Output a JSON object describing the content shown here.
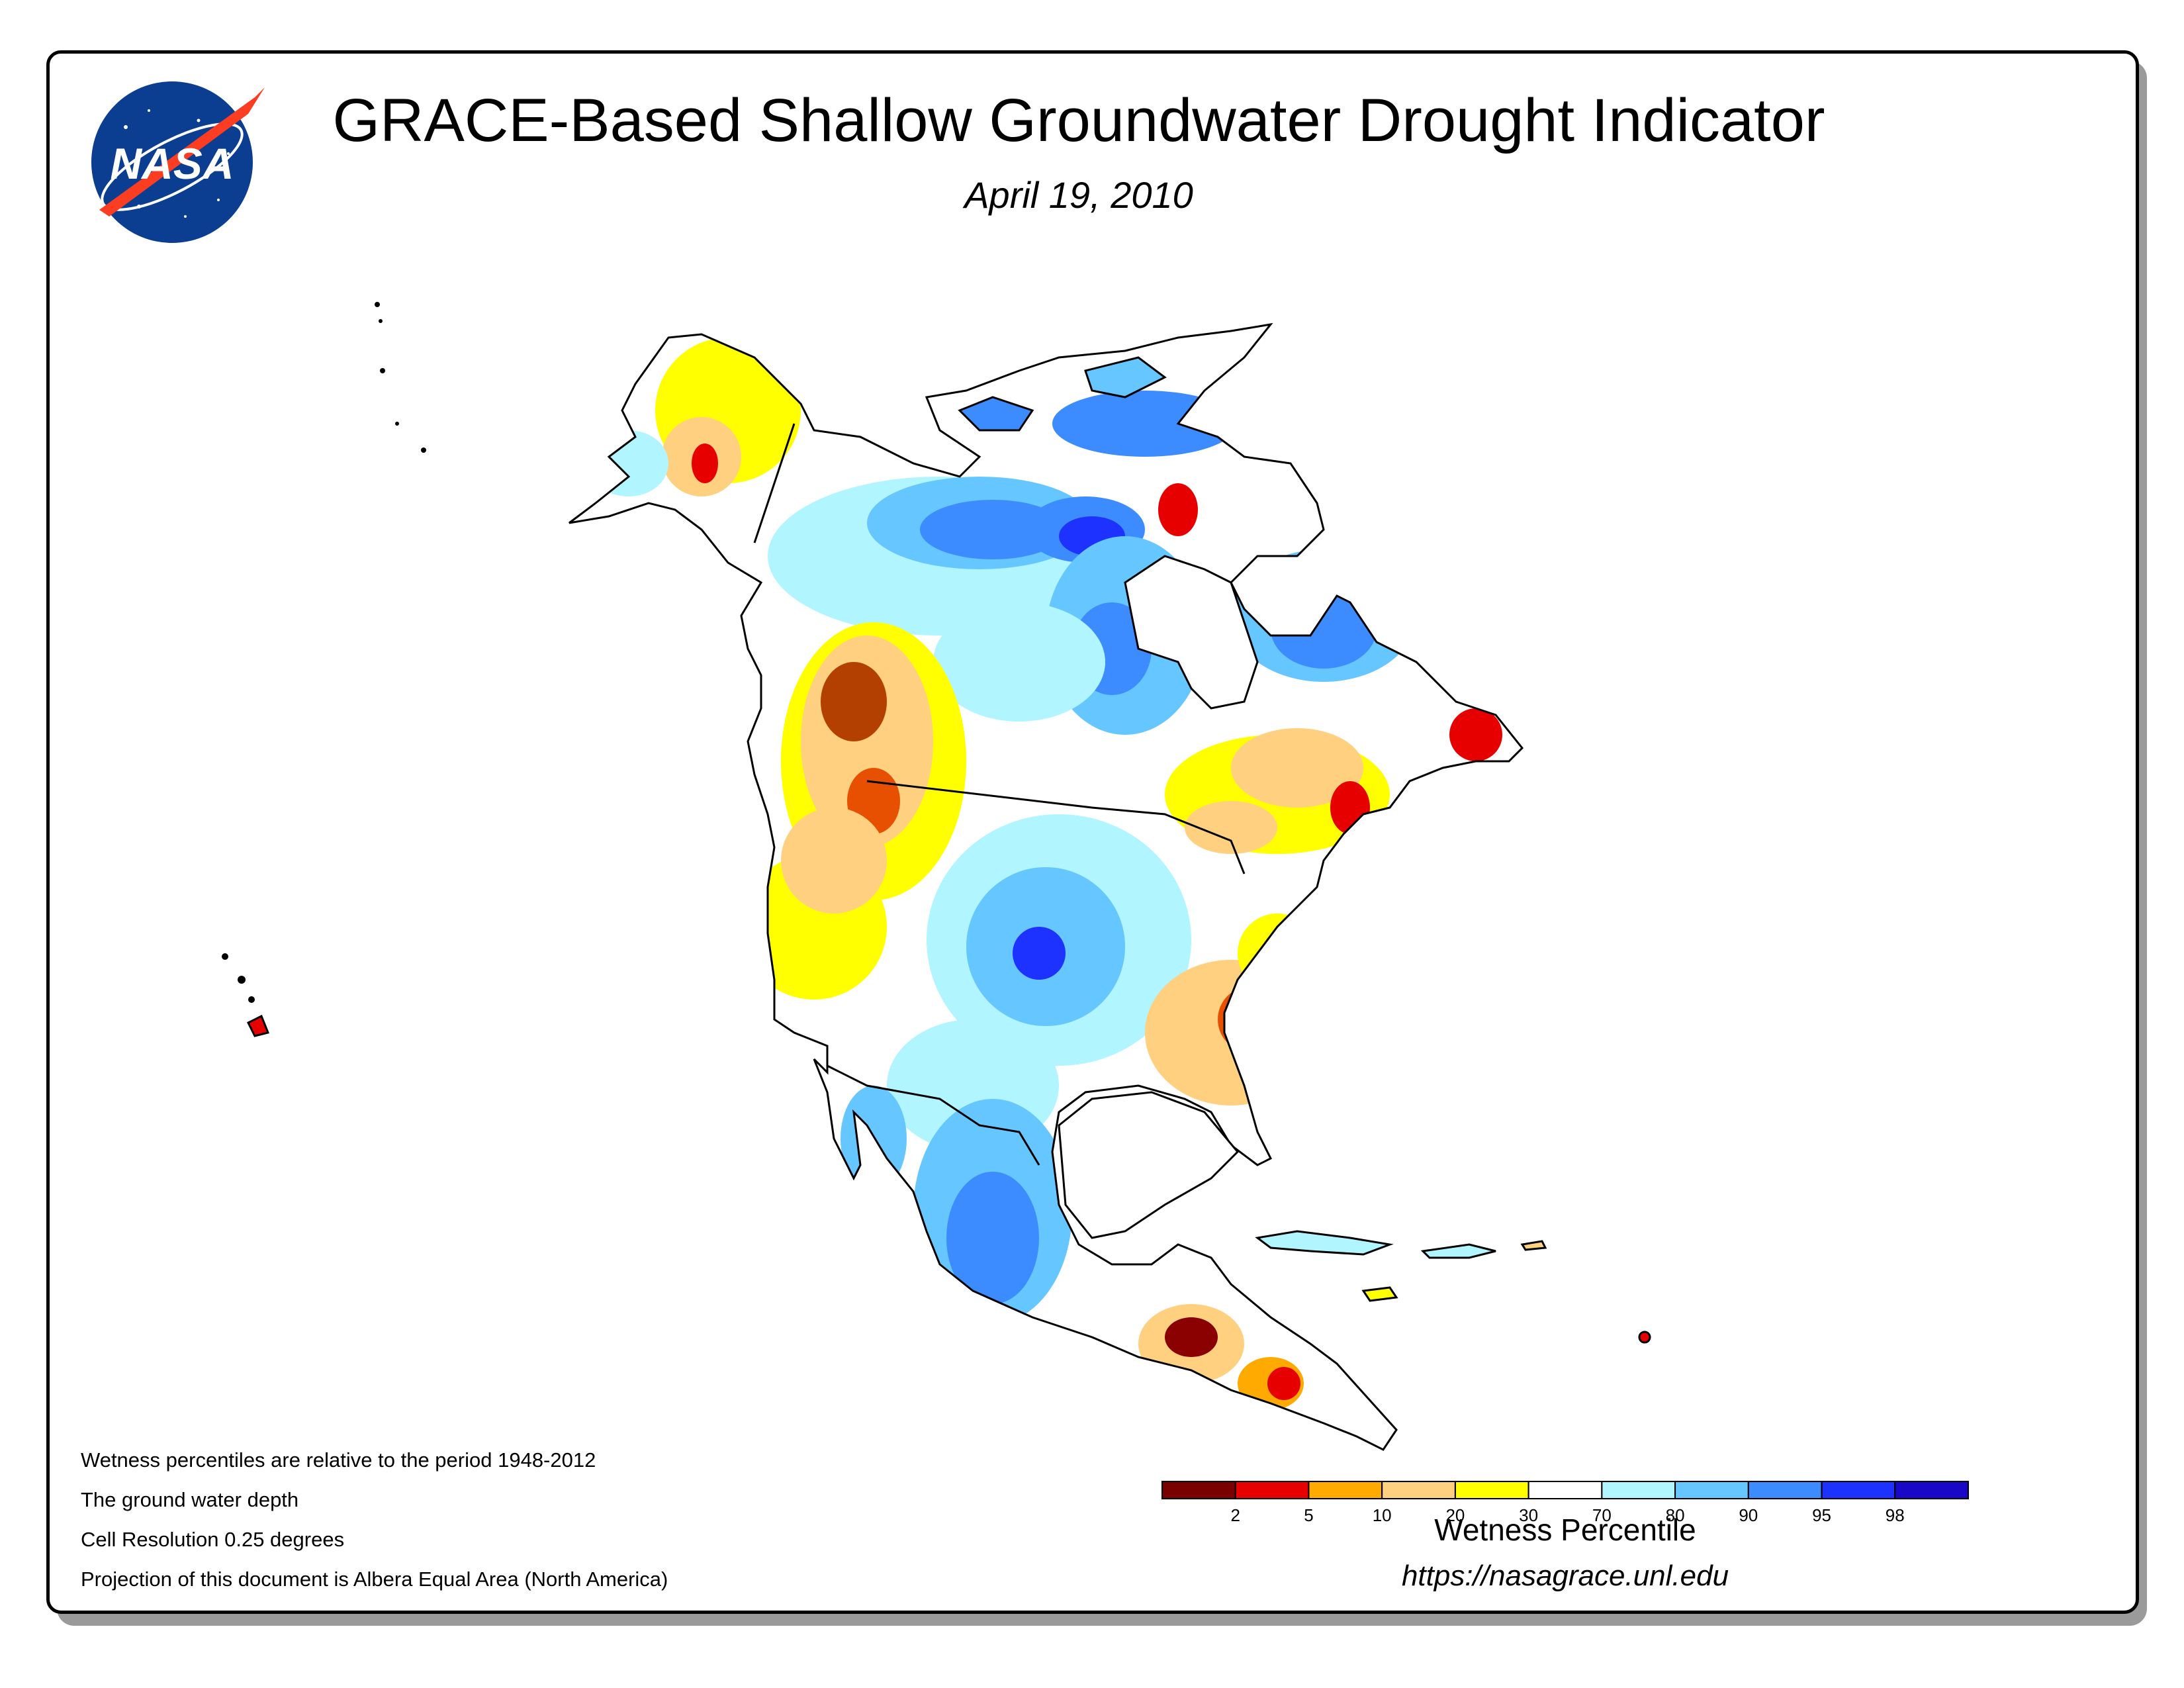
{
  "header": {
    "title": "GRACE-Based Shallow Groundwater Drought Indicator",
    "date": "April 19, 2010"
  },
  "logo": {
    "text": "NASA",
    "icon": "nasa-meatball-logo-icon"
  },
  "notes": [
    "Wetness percentiles are relative to the period 1948-2012",
    "The ground water depth",
    "Cell Resolution 0.25 degrees",
    "Projection of this document is Albera Equal Area (North America)"
  ],
  "legend": {
    "title": "Wetness Percentile",
    "url": "https://nasagrace.unl.edu",
    "tick_labels": [
      "2",
      "5",
      "10",
      "20",
      "30",
      "70",
      "80",
      "90",
      "95",
      "98"
    ],
    "colors": [
      "#7a0000",
      "#e60000",
      "#ffaa00",
      "#ffd080",
      "#ffff00",
      "#ffffff",
      "#b0f5ff",
      "#66c6ff",
      "#3c8cff",
      "#1e32ff",
      "#1a08c8"
    ]
  },
  "map": {
    "region": "North America",
    "palette": {
      "ocean": "#ffffff",
      "coast": "#000000",
      "dry_extreme": "#8b0000",
      "dry_severe": "#e60000",
      "dry_moderate": "#ffaa00",
      "dry_abnormal": "#ffd080",
      "dry_watch": "#ffff00",
      "normal": "#ffffff",
      "wet_slight": "#b0f5ff",
      "wet_moderate": "#66c6ff",
      "wet_high": "#3c8cff",
      "wet_very_high": "#1e32ff"
    }
  }
}
